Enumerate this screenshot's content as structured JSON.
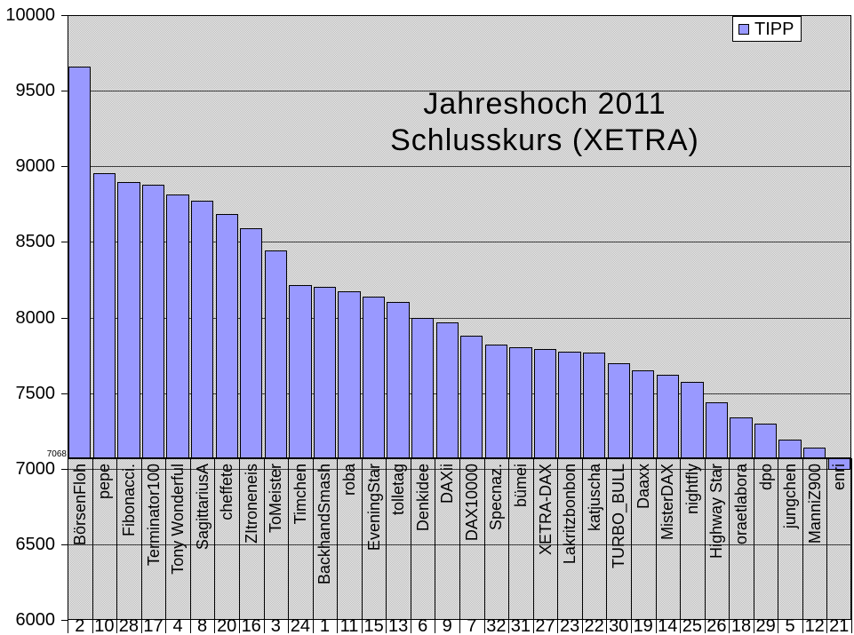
{
  "title": {
    "line1": "Jahreshoch 2011",
    "line2": "Schlusskurs (XETRA)"
  },
  "legend": {
    "label": "TIPP"
  },
  "baseline_annotation": "7068",
  "colors": {
    "bar_fill": "#9999FF",
    "bar_border": "#000000",
    "plot_bg": "#e7e7e7",
    "plot_dot": "#bfbfbf",
    "grid": "#3c3c3c",
    "axis": "#000000",
    "legend_bg": "#ffffff",
    "text": "#000000"
  },
  "chart_data": {
    "type": "bar",
    "title": "Jahreshoch 2011 Schlusskurs (XETRA)",
    "legend_position": "top-right",
    "grid": "horizontal",
    "ylim": [
      6000,
      10000
    ],
    "ytick_step": 500,
    "y_ticks": [
      10000,
      9500,
      9000,
      8500,
      8000,
      7500,
      7000,
      6500,
      6000
    ],
    "baseline": 7068,
    "categories": [
      "BörsenFloh",
      "pepe",
      "Fibonacci.",
      "Terminator100",
      "Tony Wonderful",
      "SagittariusA",
      "cheffete",
      "ZItroneneis",
      "ToMeister",
      "Timchen",
      "BackhandSmash",
      "roba",
      "EveningStar",
      "tolletag",
      "Denkidee",
      "DAXii",
      "DAX10000",
      "Specnaz.",
      "bümei",
      "XETRA-DAX",
      "Lakritzbonbon",
      "katjuscha",
      "TURBO_BULL",
      "Daaxx",
      "MisterDAX",
      "nightfly",
      "Highway Star",
      "oraetlabora",
      "dpo",
      "jungchen",
      "ManniZ900",
      "enri"
    ],
    "category_numbers": [
      2,
      10,
      28,
      17,
      4,
      8,
      20,
      16,
      3,
      24,
      1,
      11,
      15,
      13,
      6,
      9,
      7,
      32,
      31,
      27,
      23,
      22,
      30,
      19,
      14,
      25,
      26,
      18,
      29,
      5,
      12,
      21
    ],
    "series": [
      {
        "name": "TIPP",
        "values": [
          9660,
          8955,
          8895,
          8880,
          8815,
          8775,
          8685,
          8590,
          8445,
          8215,
          8205,
          8175,
          8140,
          8105,
          7995,
          7970,
          7880,
          7820,
          7805,
          7790,
          7775,
          7770,
          7700,
          7650,
          7620,
          7575,
          7440,
          7340,
          7300,
          7195,
          7140,
          6990
        ]
      }
    ]
  }
}
